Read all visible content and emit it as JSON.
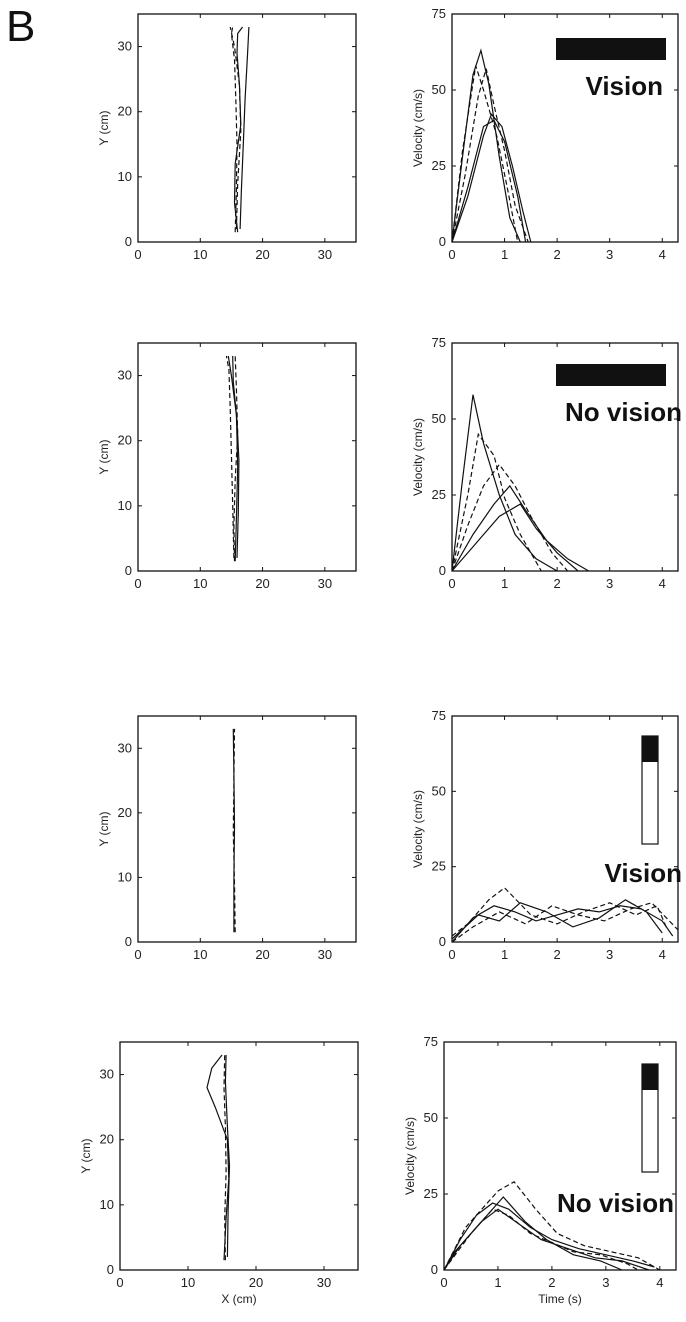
{
  "panel_label": "B",
  "chart_data": [
    {
      "type": "line",
      "panel": "row1-left",
      "xlabel": "",
      "ylabel": "Y (cm)",
      "xlim": [
        0,
        35
      ],
      "ylim": [
        0,
        35
      ],
      "xticks": [
        "0",
        "10",
        "20",
        "30"
      ],
      "yticks": [
        "0",
        "10",
        "20",
        "30"
      ],
      "series": [
        {
          "x": [
            16.0,
            15.5,
            15.6,
            16.5,
            16.3,
            15.9,
            16.0,
            16.8
          ],
          "y": [
            1.5,
            6,
            12,
            18,
            24,
            29,
            32,
            33
          ]
        },
        {
          "x": [
            15.6,
            15.8,
            15.9,
            15.7,
            15.5,
            15.0,
            15.2
          ],
          "y": [
            1.5,
            8,
            15,
            22,
            28,
            32,
            33
          ]
        },
        {
          "x": [
            16.4,
            16.6,
            16.9,
            17.2,
            17.6,
            17.8
          ],
          "y": [
            2,
            8,
            15,
            22,
            29,
            33
          ]
        },
        {
          "x": [
            15.8,
            16.0,
            16.5,
            16.3,
            15.5,
            14.8
          ],
          "y": [
            2,
            9,
            17,
            24,
            30,
            33
          ]
        }
      ]
    },
    {
      "type": "line",
      "panel": "row1-right",
      "condition": "Vision",
      "xlabel": "",
      "ylabel": "Velocity (cm/s)",
      "xlim": [
        0,
        4.3
      ],
      "ylim": [
        0,
        75
      ],
      "xticks": [
        "0",
        "1",
        "2",
        "3",
        "4"
      ],
      "yticks": [
        "0",
        "25",
        "50",
        "75"
      ],
      "series": [
        {
          "x": [
            0,
            0.2,
            0.4,
            0.55,
            0.7,
            0.9,
            1.1,
            1.3
          ],
          "y": [
            0,
            28,
            55,
            63,
            52,
            28,
            8,
            0
          ]
        },
        {
          "x": [
            0,
            0.25,
            0.5,
            0.65,
            0.8,
            1.0,
            1.2,
            1.45
          ],
          "y": [
            0,
            22,
            48,
            57,
            45,
            30,
            12,
            0
          ]
        },
        {
          "x": [
            0,
            0.3,
            0.6,
            0.75,
            0.95,
            1.15,
            1.35,
            1.5
          ],
          "y": [
            0,
            15,
            35,
            42,
            38,
            25,
            10,
            0
          ]
        },
        {
          "x": [
            0,
            0.2,
            0.45,
            0.6,
            0.85,
            1.05,
            1.25
          ],
          "y": [
            0,
            30,
            58,
            50,
            35,
            18,
            0
          ]
        },
        {
          "x": [
            0,
            0.3,
            0.6,
            0.8,
            1.0,
            1.25,
            1.4
          ],
          "y": [
            0,
            18,
            38,
            40,
            33,
            15,
            0
          ]
        }
      ]
    },
    {
      "type": "line",
      "panel": "row2-left",
      "xlabel": "",
      "ylabel": "Y (cm)",
      "xlim": [
        0,
        35
      ],
      "ylim": [
        0,
        35
      ],
      "xticks": [
        "0",
        "10",
        "20",
        "30"
      ],
      "yticks": [
        "0",
        "10",
        "20",
        "30"
      ],
      "series": [
        {
          "x": [
            15.6,
            15.8,
            16.0,
            15.8,
            15.0,
            14.5
          ],
          "y": [
            1.5,
            8,
            16,
            24,
            30,
            33
          ]
        },
        {
          "x": [
            15.4,
            15.2,
            15.0,
            14.8,
            14.6,
            14.2
          ],
          "y": [
            2,
            10,
            18,
            25,
            31,
            33
          ]
        },
        {
          "x": [
            15.9,
            16.1,
            16.2,
            15.9,
            15.3,
            15.2
          ],
          "y": [
            2,
            9,
            17,
            23,
            29,
            33
          ]
        },
        {
          "x": [
            15.5,
            15.4,
            15.6,
            16.0,
            15.8,
            15.6
          ],
          "y": [
            1.5,
            7,
            14,
            21,
            28,
            33
          ]
        }
      ]
    },
    {
      "type": "line",
      "panel": "row2-right",
      "condition": "No vision",
      "xlabel": "",
      "ylabel": "Velocity (cm/s)",
      "xlim": [
        0,
        4.3
      ],
      "ylim": [
        0,
        75
      ],
      "xticks": [
        "0",
        "1",
        "2",
        "3",
        "4"
      ],
      "yticks": [
        "0",
        "25",
        "50",
        "75"
      ],
      "series": [
        {
          "x": [
            0,
            0.2,
            0.4,
            0.6,
            0.9,
            1.2,
            1.6,
            2.0
          ],
          "y": [
            0,
            30,
            58,
            42,
            25,
            12,
            4,
            0
          ]
        },
        {
          "x": [
            0,
            0.3,
            0.6,
            0.9,
            1.2,
            1.5,
            1.9,
            2.2
          ],
          "y": [
            0,
            15,
            28,
            35,
            28,
            18,
            6,
            0
          ]
        },
        {
          "x": [
            0,
            0.4,
            0.8,
            1.1,
            1.4,
            1.8,
            2.2,
            2.6
          ],
          "y": [
            0,
            12,
            22,
            28,
            20,
            10,
            4,
            0
          ]
        },
        {
          "x": [
            0,
            0.3,
            0.5,
            0.8,
            1.0,
            1.3,
            1.7
          ],
          "y": [
            0,
            25,
            45,
            38,
            24,
            12,
            0
          ]
        },
        {
          "x": [
            0,
            0.5,
            0.9,
            1.3,
            1.6,
            2.0,
            2.4
          ],
          "y": [
            0,
            10,
            18,
            22,
            14,
            6,
            0
          ]
        }
      ]
    },
    {
      "type": "line",
      "panel": "row3-left",
      "xlabel": "",
      "ylabel": "Y (cm)",
      "xlim": [
        0,
        35
      ],
      "ylim": [
        0,
        35
      ],
      "xticks": [
        "0",
        "10",
        "20",
        "30"
      ],
      "yticks": [
        "0",
        "10",
        "20",
        "30"
      ],
      "series": [
        {
          "x": [
            15.4,
            15.4,
            15.5,
            15.4,
            15.3
          ],
          "y": [
            1.5,
            10,
            18,
            26,
            33
          ]
        },
        {
          "x": [
            15.6,
            15.5,
            15.3,
            15.4,
            15.5
          ],
          "y": [
            1.5,
            9,
            17,
            25,
            33
          ]
        }
      ]
    },
    {
      "type": "line",
      "panel": "row3-right",
      "condition": "Vision",
      "xlabel": "",
      "ylabel": "Velocity (cm/s)",
      "xlim": [
        0,
        4.3
      ],
      "ylim": [
        0,
        75
      ],
      "xticks": [
        "0",
        "1",
        "2",
        "3",
        "4"
      ],
      "yticks": [
        "0",
        "25",
        "50",
        "75"
      ],
      "series": [
        {
          "x": [
            0,
            0.4,
            0.8,
            1.2,
            1.6,
            2.0,
            2.4,
            2.8,
            3.2,
            3.6,
            4.0,
            4.2
          ],
          "y": [
            0,
            8,
            12,
            10,
            7,
            9,
            11,
            10,
            12,
            11,
            7,
            2
          ]
        },
        {
          "x": [
            0,
            0.3,
            0.7,
            1.0,
            1.5,
            2.0,
            2.5,
            3.0,
            3.5,
            3.9,
            4.1
          ],
          "y": [
            2,
            6,
            14,
            18,
            9,
            6,
            10,
            13,
            9,
            12,
            4
          ]
        },
        {
          "x": [
            0,
            0.5,
            0.9,
            1.3,
            1.8,
            2.3,
            2.8,
            3.3,
            3.7,
            4.0
          ],
          "y": [
            1,
            9,
            7,
            13,
            10,
            5,
            8,
            14,
            10,
            3
          ]
        },
        {
          "x": [
            0,
            0.4,
            0.9,
            1.4,
            1.9,
            2.4,
            2.9,
            3.4,
            3.8,
            4.3
          ],
          "y": [
            0,
            5,
            10,
            6,
            12,
            9,
            7,
            11,
            13,
            4
          ]
        }
      ]
    },
    {
      "type": "line",
      "panel": "row4-left",
      "xlabel": "X (cm)",
      "ylabel": "Y (cm)",
      "xlim": [
        0,
        35
      ],
      "ylim": [
        0,
        35
      ],
      "xticks": [
        "0",
        "10",
        "20",
        "30"
      ],
      "yticks": [
        "0",
        "10",
        "20",
        "30"
      ],
      "series": [
        {
          "x": [
            15.3,
            15.6,
            16.0,
            15.8,
            14.0,
            12.8,
            13.5,
            15.0
          ],
          "y": [
            1.5,
            8,
            14,
            20,
            25,
            28,
            31,
            33
          ]
        },
        {
          "x": [
            15.5,
            15.4,
            15.6,
            15.5,
            15.3,
            15.4
          ],
          "y": [
            1.5,
            8,
            15,
            22,
            28,
            33
          ]
        },
        {
          "x": [
            15.8,
            15.9,
            16.1,
            15.8,
            15.5,
            15.6
          ],
          "y": [
            2,
            9,
            16,
            22,
            29,
            33
          ]
        }
      ]
    },
    {
      "type": "line",
      "panel": "row4-right",
      "condition": "No vision",
      "xlabel": "Time (s)",
      "ylabel": "Velocity (cm/s)",
      "xlim": [
        0,
        4.3
      ],
      "ylim": [
        0,
        75
      ],
      "xticks": [
        "0",
        "1",
        "2",
        "3",
        "4"
      ],
      "yticks": [
        "0",
        "25",
        "50",
        "75"
      ],
      "series": [
        {
          "x": [
            0,
            0.3,
            0.6,
            0.9,
            1.2,
            1.6,
            2.0,
            2.5,
            3.0,
            3.5,
            3.9
          ],
          "y": [
            0,
            10,
            18,
            22,
            20,
            14,
            10,
            7,
            5,
            3,
            1
          ]
        },
        {
          "x": [
            0,
            0.4,
            0.8,
            1.0,
            1.3,
            1.7,
            2.1,
            2.6,
            3.1,
            3.6,
            4.0
          ],
          "y": [
            0,
            14,
            22,
            26,
            29,
            20,
            12,
            8,
            6,
            4,
            0
          ]
        },
        {
          "x": [
            0,
            0.3,
            0.7,
            1.0,
            1.4,
            1.8,
            2.3,
            2.8,
            3.3,
            3.8
          ],
          "y": [
            0,
            8,
            16,
            20,
            15,
            10,
            7,
            4,
            3,
            0
          ]
        },
        {
          "x": [
            0,
            0.5,
            0.9,
            1.2,
            1.6,
            2.0,
            2.4,
            2.9,
            3.4,
            3.6
          ],
          "y": [
            0,
            12,
            20,
            18,
            12,
            9,
            6,
            5,
            2,
            0
          ]
        },
        {
          "x": [
            0,
            0.2,
            0.6,
            1.1,
            1.5,
            1.9,
            2.4,
            2.9,
            3.3
          ],
          "y": [
            0,
            6,
            14,
            24,
            16,
            10,
            5,
            3,
            0
          ]
        }
      ]
    }
  ]
}
